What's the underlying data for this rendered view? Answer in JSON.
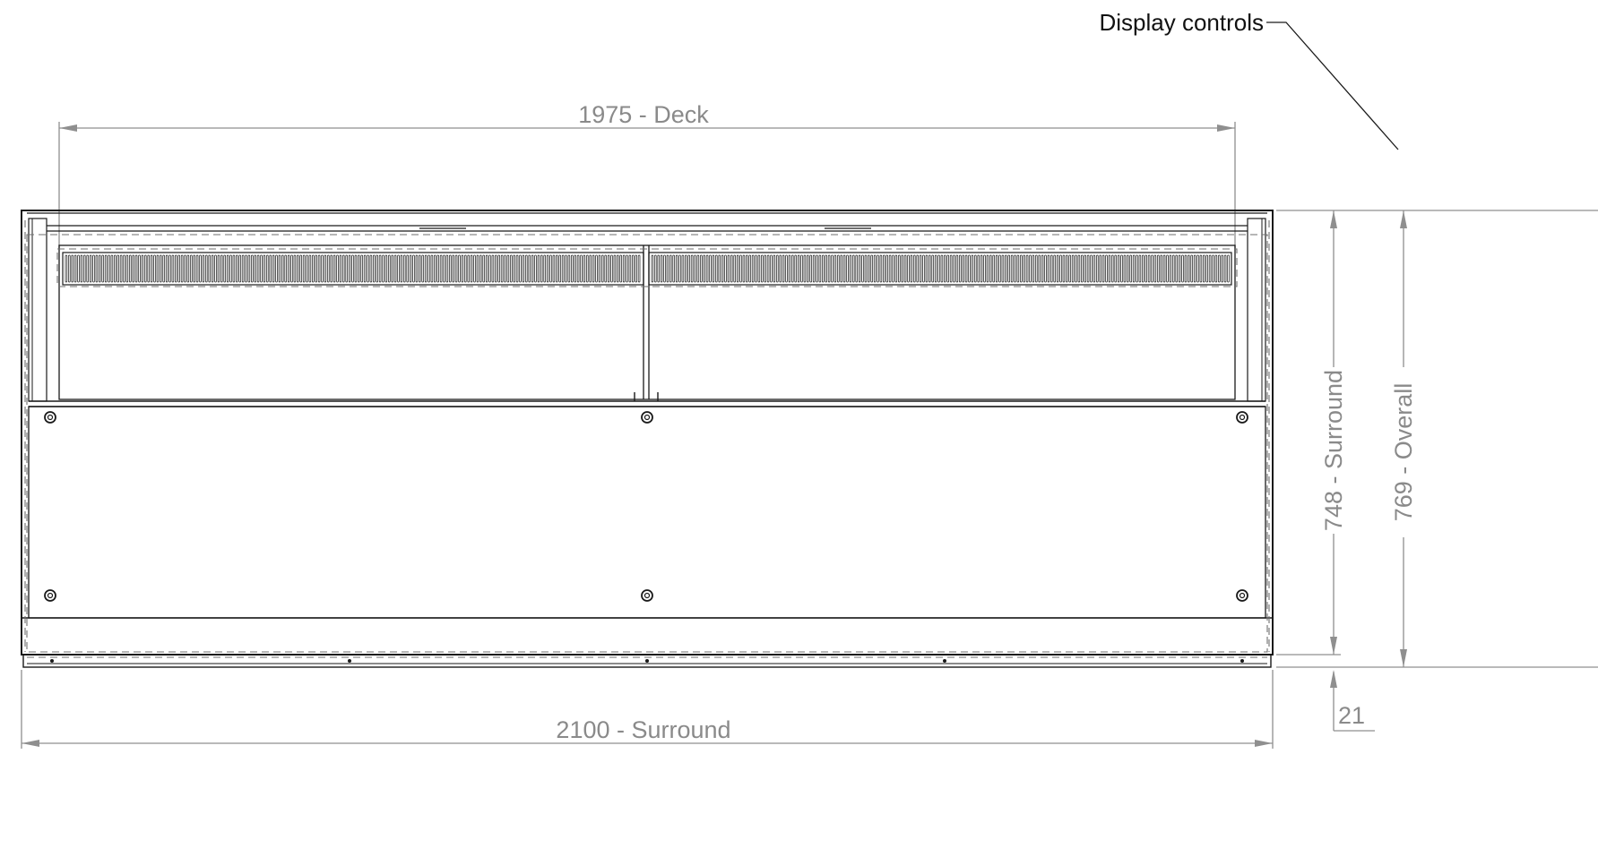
{
  "callout": {
    "label": "Display controls"
  },
  "dimensions": {
    "deck_width": "1975 - Deck",
    "surround_width": "2100 - Surround",
    "surround_height": "748 - Surround",
    "overall_height": "769 - Overall",
    "offset": "21"
  },
  "colors": {
    "outline": "#1a1a1a",
    "hidden_line": "#6f6f6f",
    "dimension": "#8f8f8f"
  },
  "icons": [
    "screw-icon"
  ]
}
